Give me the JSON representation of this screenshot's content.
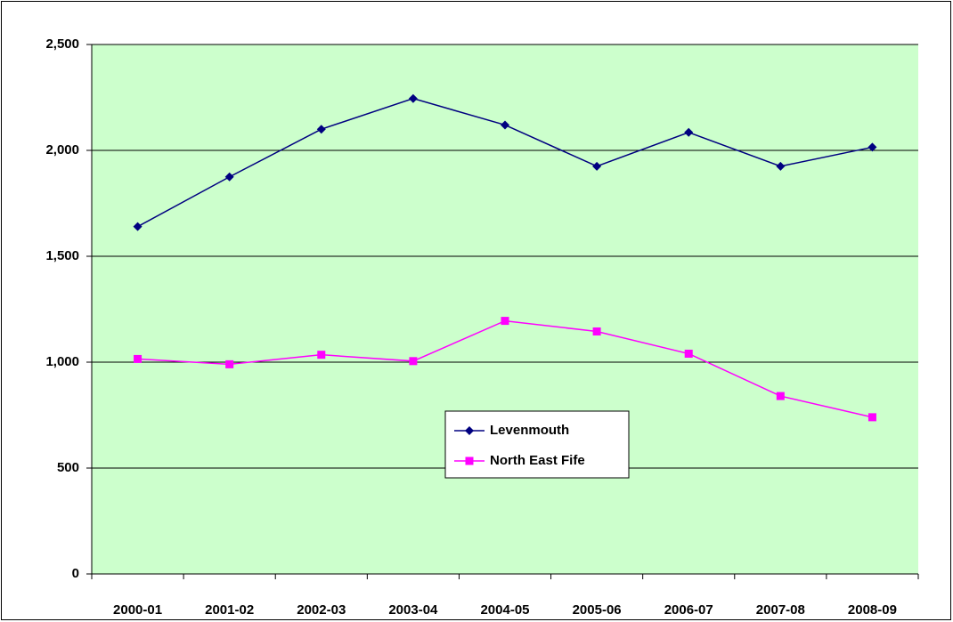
{
  "chart_data": {
    "type": "line",
    "categories": [
      "2000-01",
      "2001-02",
      "2002-03",
      "2003-04",
      "2004-05",
      "2005-06",
      "2006-07",
      "2007-08",
      "2008-09"
    ],
    "series": [
      {
        "name": "Levenmouth",
        "color": "#000080",
        "marker": "diamond",
        "values": [
          1640,
          1875,
          2100,
          2245,
          2120,
          1925,
          2085,
          1925,
          2015
        ]
      },
      {
        "name": "North East Fife",
        "color": "#ff00ff",
        "marker": "square",
        "values": [
          1015,
          990,
          1035,
          1005,
          1195,
          1145,
          1040,
          840,
          740
        ]
      }
    ],
    "ylim": [
      0,
      2500
    ],
    "yticks": [
      0,
      500,
      {
        "value": 1000,
        "label": "1,000"
      },
      {
        "value": 1500,
        "label": "1,500"
      },
      {
        "value": 2000,
        "label": "2,000"
      },
      {
        "value": 2500,
        "label": "2,500"
      }
    ],
    "grid": true,
    "plot_background": "#ccffcc",
    "legend": "center"
  }
}
